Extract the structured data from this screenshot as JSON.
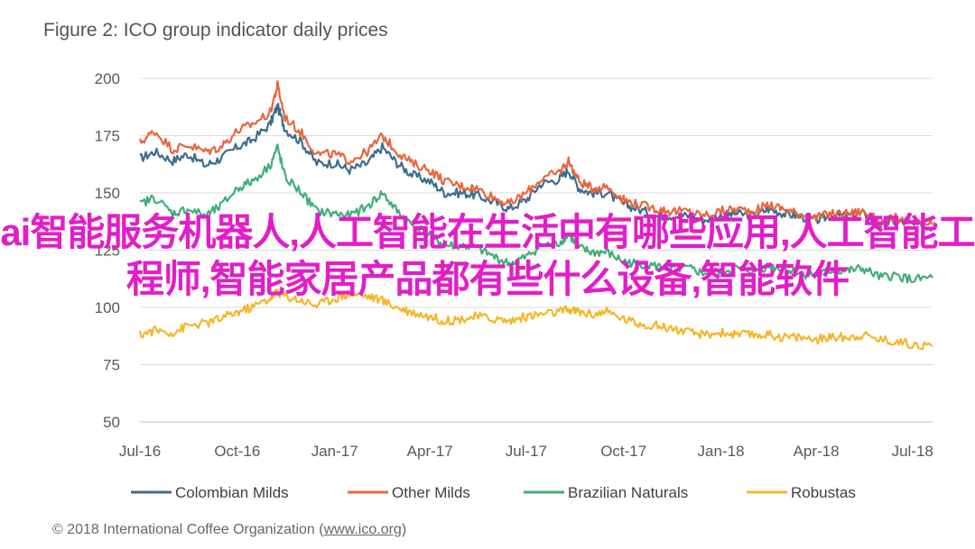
{
  "figure": {
    "title": "Figure 2: ICO group indicator daily prices",
    "credit_prefix": "© 2018 International Coffee Organization (",
    "credit_link": "www.ico.org",
    "credit_suffix": ")"
  },
  "overlay_text": "ai智能服务机器人,人工智能在生活中有哪些应用,人工智能工程师,智能家居产品都有些什么设备,智能软件",
  "chart_data": {
    "type": "line",
    "title": "Figure 2: ICO group indicator daily prices",
    "xlabel": "",
    "ylabel": "",
    "ylim": [
      50,
      200
    ],
    "yticks": [
      50,
      75,
      100,
      125,
      150,
      175,
      200
    ],
    "xlim": [
      "2016-07-01",
      "2018-07-20"
    ],
    "xticks": [
      {
        "date": "2016-07-01",
        "label": "Jul-16"
      },
      {
        "date": "2016-10-01",
        "label": "Oct-16"
      },
      {
        "date": "2017-01-01",
        "label": "Jan-17"
      },
      {
        "date": "2017-04-01",
        "label": "Apr-17"
      },
      {
        "date": "2017-07-01",
        "label": "Jul-17"
      },
      {
        "date": "2017-10-01",
        "label": "Oct-17"
      },
      {
        "date": "2018-01-01",
        "label": "Jan-18"
      },
      {
        "date": "2018-04-01",
        "label": "Apr-18"
      },
      {
        "date": "2018-07-01",
        "label": "Jul-18"
      }
    ],
    "grid": true,
    "legend_position": "bottom",
    "series": [
      {
        "name": "Colombian Milds",
        "color": "#3d6d8e",
        "points": [
          [
            "2016-07-01",
            165
          ],
          [
            "2016-07-15",
            168
          ],
          [
            "2016-08-01",
            164
          ],
          [
            "2016-08-15",
            167
          ],
          [
            "2016-09-01",
            162
          ],
          [
            "2016-09-15",
            165
          ],
          [
            "2016-10-01",
            170
          ],
          [
            "2016-10-15",
            173
          ],
          [
            "2016-11-01",
            180
          ],
          [
            "2016-11-08",
            188
          ],
          [
            "2016-11-15",
            178
          ],
          [
            "2016-12-01",
            172
          ],
          [
            "2016-12-15",
            163
          ],
          [
            "2017-01-01",
            163
          ],
          [
            "2017-01-15",
            160
          ],
          [
            "2017-02-01",
            163
          ],
          [
            "2017-02-15",
            170
          ],
          [
            "2017-03-01",
            163
          ],
          [
            "2017-03-15",
            158
          ],
          [
            "2017-04-01",
            155
          ],
          [
            "2017-04-15",
            150
          ],
          [
            "2017-05-01",
            150
          ],
          [
            "2017-05-15",
            149
          ],
          [
            "2017-06-01",
            146
          ],
          [
            "2017-06-15",
            143
          ],
          [
            "2017-07-01",
            147
          ],
          [
            "2017-07-15",
            154
          ],
          [
            "2017-08-01",
            156
          ],
          [
            "2017-08-10",
            160
          ],
          [
            "2017-08-20",
            152
          ],
          [
            "2017-09-01",
            150
          ],
          [
            "2017-09-15",
            150
          ],
          [
            "2017-10-01",
            145
          ],
          [
            "2017-10-15",
            143
          ],
          [
            "2017-11-01",
            140
          ],
          [
            "2017-11-15",
            140
          ],
          [
            "2017-12-01",
            140
          ],
          [
            "2017-12-15",
            138
          ],
          [
            "2018-01-01",
            140
          ],
          [
            "2018-01-15",
            141
          ],
          [
            "2018-02-01",
            140
          ],
          [
            "2018-02-15",
            143
          ],
          [
            "2018-03-01",
            141
          ],
          [
            "2018-03-15",
            140
          ],
          [
            "2018-04-01",
            138
          ],
          [
            "2018-04-15",
            140
          ],
          [
            "2018-05-01",
            140
          ],
          [
            "2018-05-15",
            141
          ],
          [
            "2018-06-01",
            136
          ],
          [
            "2018-06-15",
            138
          ],
          [
            "2018-07-01",
            136
          ],
          [
            "2018-07-20",
            135
          ]
        ]
      },
      {
        "name": "Other Milds",
        "color": "#e8663f",
        "points": [
          [
            "2016-07-01",
            172
          ],
          [
            "2016-07-15",
            177
          ],
          [
            "2016-08-01",
            169
          ],
          [
            "2016-08-15",
            171
          ],
          [
            "2016-09-01",
            168
          ],
          [
            "2016-09-15",
            170
          ],
          [
            "2016-10-01",
            177
          ],
          [
            "2016-10-15",
            180
          ],
          [
            "2016-11-01",
            185
          ],
          [
            "2016-11-08",
            197
          ],
          [
            "2016-11-15",
            183
          ],
          [
            "2016-12-01",
            176
          ],
          [
            "2016-12-15",
            167
          ],
          [
            "2017-01-01",
            167
          ],
          [
            "2017-01-15",
            164
          ],
          [
            "2017-02-01",
            168
          ],
          [
            "2017-02-15",
            175
          ],
          [
            "2017-03-01",
            168
          ],
          [
            "2017-03-15",
            163
          ],
          [
            "2017-04-01",
            160
          ],
          [
            "2017-04-15",
            155
          ],
          [
            "2017-05-01",
            153
          ],
          [
            "2017-05-15",
            152
          ],
          [
            "2017-06-01",
            148
          ],
          [
            "2017-06-15",
            145
          ],
          [
            "2017-07-01",
            150
          ],
          [
            "2017-07-15",
            156
          ],
          [
            "2017-08-01",
            159
          ],
          [
            "2017-08-10",
            164
          ],
          [
            "2017-08-20",
            155
          ],
          [
            "2017-09-01",
            152
          ],
          [
            "2017-09-15",
            153
          ],
          [
            "2017-10-01",
            147
          ],
          [
            "2017-10-15",
            145
          ],
          [
            "2017-11-01",
            143
          ],
          [
            "2017-11-15",
            142
          ],
          [
            "2017-12-01",
            142
          ],
          [
            "2017-12-15",
            140
          ],
          [
            "2018-01-01",
            142
          ],
          [
            "2018-01-15",
            143
          ],
          [
            "2018-02-01",
            142
          ],
          [
            "2018-02-15",
            145
          ],
          [
            "2018-03-01",
            143
          ],
          [
            "2018-03-15",
            141
          ],
          [
            "2018-04-01",
            139
          ],
          [
            "2018-04-15",
            141
          ],
          [
            "2018-05-01",
            141
          ],
          [
            "2018-05-15",
            142
          ],
          [
            "2018-06-01",
            137
          ],
          [
            "2018-06-15",
            139
          ],
          [
            "2018-07-01",
            137
          ],
          [
            "2018-07-20",
            136
          ]
        ]
      },
      {
        "name": "Brazilian Naturals",
        "color": "#3fae7a",
        "points": [
          [
            "2016-07-01",
            145
          ],
          [
            "2016-07-15",
            148
          ],
          [
            "2016-08-01",
            141
          ],
          [
            "2016-08-15",
            143
          ],
          [
            "2016-09-01",
            140
          ],
          [
            "2016-09-15",
            144
          ],
          [
            "2016-10-01",
            152
          ],
          [
            "2016-10-15",
            155
          ],
          [
            "2016-11-01",
            162
          ],
          [
            "2016-11-08",
            170
          ],
          [
            "2016-11-15",
            157
          ],
          [
            "2016-12-01",
            150
          ],
          [
            "2016-12-15",
            142
          ],
          [
            "2017-01-01",
            141
          ],
          [
            "2017-01-15",
            140
          ],
          [
            "2017-02-01",
            144
          ],
          [
            "2017-02-15",
            150
          ],
          [
            "2017-03-01",
            142
          ],
          [
            "2017-03-15",
            136
          ],
          [
            "2017-04-01",
            132
          ],
          [
            "2017-04-15",
            127
          ],
          [
            "2017-05-01",
            127
          ],
          [
            "2017-05-15",
            126
          ],
          [
            "2017-06-01",
            122
          ],
          [
            "2017-06-15",
            119
          ],
          [
            "2017-07-01",
            122
          ],
          [
            "2017-07-15",
            127
          ],
          [
            "2017-08-01",
            128
          ],
          [
            "2017-08-10",
            132
          ],
          [
            "2017-08-20",
            126
          ],
          [
            "2017-09-01",
            124
          ],
          [
            "2017-09-15",
            124
          ],
          [
            "2017-10-01",
            120
          ],
          [
            "2017-10-15",
            119
          ],
          [
            "2017-11-01",
            118
          ],
          [
            "2017-11-15",
            117
          ],
          [
            "2017-12-01",
            117
          ],
          [
            "2017-12-15",
            115
          ],
          [
            "2018-01-01",
            116
          ],
          [
            "2018-01-15",
            117
          ],
          [
            "2018-02-01",
            116
          ],
          [
            "2018-02-15",
            118
          ],
          [
            "2018-03-01",
            117
          ],
          [
            "2018-03-15",
            115
          ],
          [
            "2018-04-01",
            114
          ],
          [
            "2018-04-15",
            116
          ],
          [
            "2018-05-01",
            116
          ],
          [
            "2018-05-15",
            117
          ],
          [
            "2018-06-01",
            113
          ],
          [
            "2018-06-15",
            114
          ],
          [
            "2018-07-01",
            112
          ],
          [
            "2018-07-20",
            113
          ]
        ]
      },
      {
        "name": "Robustas",
        "color": "#f4b72a",
        "points": [
          [
            "2016-07-01",
            88
          ],
          [
            "2016-07-15",
            90
          ],
          [
            "2016-08-01",
            89
          ],
          [
            "2016-08-15",
            92
          ],
          [
            "2016-09-01",
            93
          ],
          [
            "2016-09-15",
            95
          ],
          [
            "2016-10-01",
            98
          ],
          [
            "2016-10-15",
            100
          ],
          [
            "2016-11-01",
            104
          ],
          [
            "2016-11-08",
            107
          ],
          [
            "2016-11-15",
            105
          ],
          [
            "2016-12-01",
            103
          ],
          [
            "2016-12-15",
            101
          ],
          [
            "2017-01-01",
            104
          ],
          [
            "2017-01-15",
            106
          ],
          [
            "2017-02-01",
            105
          ],
          [
            "2017-02-15",
            103
          ],
          [
            "2017-03-01",
            100
          ],
          [
            "2017-03-15",
            98
          ],
          [
            "2017-04-01",
            96
          ],
          [
            "2017-04-15",
            94
          ],
          [
            "2017-05-01",
            95
          ],
          [
            "2017-05-15",
            96
          ],
          [
            "2017-06-01",
            95
          ],
          [
            "2017-06-15",
            94
          ],
          [
            "2017-07-01",
            96
          ],
          [
            "2017-07-15",
            97
          ],
          [
            "2017-08-01",
            98
          ],
          [
            "2017-08-10",
            99
          ],
          [
            "2017-08-20",
            98
          ],
          [
            "2017-09-01",
            97
          ],
          [
            "2017-09-15",
            98
          ],
          [
            "2017-10-01",
            95
          ],
          [
            "2017-10-15",
            93
          ],
          [
            "2017-11-01",
            92
          ],
          [
            "2017-11-15",
            91
          ],
          [
            "2017-12-01",
            89
          ],
          [
            "2017-12-15",
            88
          ],
          [
            "2018-01-01",
            89
          ],
          [
            "2018-01-15",
            88
          ],
          [
            "2018-02-01",
            88
          ],
          [
            "2018-02-15",
            88
          ],
          [
            "2018-03-01",
            87
          ],
          [
            "2018-03-15",
            87
          ],
          [
            "2018-04-01",
            86
          ],
          [
            "2018-04-15",
            87
          ],
          [
            "2018-05-01",
            87
          ],
          [
            "2018-05-15",
            88
          ],
          [
            "2018-06-01",
            86
          ],
          [
            "2018-06-15",
            85
          ],
          [
            "2018-07-01",
            84
          ],
          [
            "2018-07-20",
            83
          ]
        ]
      }
    ]
  }
}
